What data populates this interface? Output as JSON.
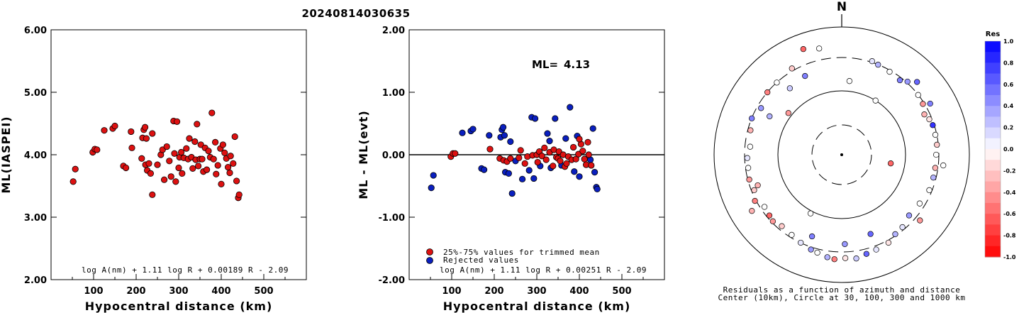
{
  "title": "20240814030635",
  "chart_data": [
    {
      "type": "scatter",
      "xlabel": "Hypocentral distance (km)",
      "ylabel": "ML(IASPEI)",
      "xlim": [
        0,
        600
      ],
      "ylim": [
        2.0,
        6.0
      ],
      "xticks": [
        "100",
        "200",
        "300",
        "400",
        "500"
      ],
      "yticks": [
        "2.00",
        "3.00",
        "4.00",
        "5.00",
        "6.00"
      ],
      "annotation": "log A(nm) + 1.11 log R + 0.00189 R - 2.09",
      "color": "#dd1111",
      "points": [
        [
          52,
          3.57
        ],
        [
          57,
          3.77
        ],
        [
          98,
          4.04
        ],
        [
          103,
          4.09
        ],
        [
          108,
          4.08
        ],
        [
          125,
          4.39
        ],
        [
          145,
          4.42
        ],
        [
          150,
          4.46
        ],
        [
          170,
          3.82
        ],
        [
          176,
          3.79
        ],
        [
          188,
          4.37
        ],
        [
          190,
          4.11
        ],
        [
          213,
          3.94
        ],
        [
          215,
          4.27
        ],
        [
          218,
          4.4
        ],
        [
          221,
          4.44
        ],
        [
          224,
          4.26
        ],
        [
          222,
          3.84
        ],
        [
          226,
          3.75
        ],
        [
          230,
          3.86
        ],
        [
          234,
          3.7
        ],
        [
          238,
          3.36
        ],
        [
          238,
          4.34
        ],
        [
          250,
          3.84
        ],
        [
          258,
          4.0
        ],
        [
          262,
          4.08
        ],
        [
          266,
          3.6
        ],
        [
          272,
          4.13
        ],
        [
          278,
          3.9
        ],
        [
          282,
          3.65
        ],
        [
          288,
          4.54
        ],
        [
          290,
          4.02
        ],
        [
          293,
          3.57
        ],
        [
          296,
          4.53
        ],
        [
          300,
          3.79
        ],
        [
          302,
          3.96
        ],
        [
          306,
          4.04
        ],
        [
          308,
          3.7
        ],
        [
          312,
          3.95
        ],
        [
          318,
          4.1
        ],
        [
          322,
          3.93
        ],
        [
          325,
          4.26
        ],
        [
          330,
          3.96
        ],
        [
          333,
          3.78
        ],
        [
          338,
          4.21
        ],
        [
          340,
          3.92
        ],
        [
          343,
          4.49
        ],
        [
          346,
          3.82
        ],
        [
          350,
          3.93
        ],
        [
          352,
          4.16
        ],
        [
          355,
          3.93
        ],
        [
          358,
          3.73
        ],
        [
          362,
          4.11
        ],
        [
          366,
          3.76
        ],
        [
          370,
          4.06
        ],
        [
          374,
          3.96
        ],
        [
          378,
          4.67
        ],
        [
          382,
          3.93
        ],
        [
          386,
          4.2
        ],
        [
          388,
          3.69
        ],
        [
          392,
          3.83
        ],
        [
          398,
          4.1
        ],
        [
          400,
          3.53
        ],
        [
          404,
          4.16
        ],
        [
          408,
          4.03
        ],
        [
          412,
          3.94
        ],
        [
          416,
          3.8
        ],
        [
          420,
          3.71
        ],
        [
          422,
          3.98
        ],
        [
          428,
          3.86
        ],
        [
          432,
          4.29
        ],
        [
          436,
          3.58
        ],
        [
          440,
          3.31
        ],
        [
          442,
          3.36
        ]
      ]
    },
    {
      "type": "scatter",
      "xlabel": "Hypocentral distance (km)",
      "ylabel": "ML - ML(evt)",
      "xlim": [
        0,
        600
      ],
      "ylim": [
        -2.0,
        2.0
      ],
      "xticks": [
        "100",
        "200",
        "300",
        "400",
        "500"
      ],
      "yticks": [
        "-2.00",
        "-1.00",
        "0.00",
        "1.00",
        "2.00"
      ],
      "ml_label": "ML=",
      "ml_value": "4.13",
      "legend": [
        "25%-75% values for trimmed mean",
        "Rejected values"
      ],
      "annotation": "log A(nm) + 1.11 log R + 0.00251 R - 2.09",
      "accepted_color": "#dd1111",
      "rejected_color": "#0a1fbf",
      "accepted": [
        [
          98,
          -0.03
        ],
        [
          103,
          0.02
        ],
        [
          108,
          0.02
        ],
        [
          190,
          0.09
        ],
        [
          213,
          -0.06
        ],
        [
          222,
          -0.09
        ],
        [
          230,
          -0.11
        ],
        [
          238,
          -0.06
        ],
        [
          258,
          -0.05
        ],
        [
          262,
          0.07
        ],
        [
          272,
          -0.14
        ],
        [
          278,
          -0.03
        ],
        [
          290,
          -0.01
        ],
        [
          300,
          0.0
        ],
        [
          302,
          -0.12
        ],
        [
          306,
          0.05
        ],
        [
          312,
          -0.02
        ],
        [
          318,
          0.11
        ],
        [
          322,
          -0.08
        ],
        [
          330,
          0.04
        ],
        [
          338,
          -0.18
        ],
        [
          340,
          0.08
        ],
        [
          346,
          -0.04
        ],
        [
          350,
          -0.06
        ],
        [
          352,
          0.05
        ],
        [
          355,
          -0.1
        ],
        [
          362,
          0.0
        ],
        [
          366,
          -0.19
        ],
        [
          370,
          -0.14
        ],
        [
          374,
          -0.03
        ],
        [
          382,
          -0.08
        ],
        [
          386,
          0.12
        ],
        [
          392,
          -0.07
        ],
        [
          398,
          0.01
        ],
        [
          404,
          0.17
        ],
        [
          408,
          0.06
        ],
        [
          412,
          -0.07
        ],
        [
          416,
          -0.16
        ],
        [
          422,
          0.0
        ],
        [
          428,
          -0.17
        ],
        [
          420,
          0.2
        ],
        [
          400,
          0.25
        ]
      ],
      "rejected": [
        [
          52,
          -0.53
        ],
        [
          57,
          -0.33
        ],
        [
          125,
          0.35
        ],
        [
          145,
          0.38
        ],
        [
          150,
          0.41
        ],
        [
          170,
          -0.22
        ],
        [
          176,
          -0.24
        ],
        [
          188,
          0.31
        ],
        [
          215,
          0.28
        ],
        [
          218,
          0.4
        ],
        [
          221,
          0.44
        ],
        [
          224,
          0.31
        ],
        [
          226,
          -0.28
        ],
        [
          234,
          -0.3
        ],
        [
          238,
          0.21
        ],
        [
          242,
          -0.62
        ],
        [
          250,
          -0.1
        ],
        [
          266,
          -0.39
        ],
        [
          282,
          -0.25
        ],
        [
          288,
          0.6
        ],
        [
          293,
          -0.38
        ],
        [
          296,
          0.58
        ],
        [
          308,
          -0.18
        ],
        [
          325,
          0.34
        ],
        [
          333,
          -0.21
        ],
        [
          343,
          0.58
        ],
        [
          358,
          -0.17
        ],
        [
          378,
          0.76
        ],
        [
          388,
          -0.27
        ],
        [
          400,
          -0.35
        ],
        [
          426,
          -0.08
        ],
        [
          432,
          0.42
        ],
        [
          436,
          -0.28
        ],
        [
          440,
          -0.52
        ],
        [
          442,
          -0.55
        ],
        [
          368,
          0.26
        ],
        [
          395,
          0.3
        ],
        [
          330,
          0.22
        ]
      ]
    },
    {
      "type": "polar-scatter",
      "north_label": "N",
      "caption_line1": "Residuals as a function of azimuth and distance",
      "caption_line2": "Center (10km), Circle at 30, 100, 300 and 1000 km",
      "colorbar_title": "Res",
      "colorbar_ticks": [
        "1.0",
        "0.8",
        "0.6",
        "0.4",
        "0.2",
        "0.0",
        "-0.2",
        "-0.4",
        "-0.6",
        "-0.8",
        "-1.0"
      ],
      "points": [
        [
          340,
          0.88,
          -0.6
        ],
        [
          330,
          0.78,
          -0.2
        ],
        [
          318,
          0.76,
          0.0
        ],
        [
          310,
          0.76,
          -0.5
        ],
        [
          300,
          0.73,
          0.4
        ],
        [
          292,
          0.76,
          0.5
        ],
        [
          285,
          0.74,
          -0.3
        ],
        [
          275,
          0.72,
          0.0
        ],
        [
          268,
          0.74,
          0.1
        ],
        [
          262,
          0.74,
          0.0
        ],
        [
          255,
          0.75,
          -0.4
        ],
        [
          248,
          0.74,
          -0.2
        ],
        [
          242,
          0.77,
          -0.5
        ],
        [
          236,
          0.73,
          0.0
        ],
        [
          230,
          0.74,
          -0.6
        ],
        [
          226,
          0.75,
          -0.4
        ],
        [
          220,
          0.73,
          -0.2
        ],
        [
          212,
          0.74,
          0.0
        ],
        [
          205,
          0.76,
          0.1
        ],
        [
          198,
          0.78,
          0.4
        ],
        [
          194,
          0.79,
          0.0
        ],
        [
          188,
          0.81,
          0.3
        ],
        [
          184,
          0.82,
          -0.5
        ],
        [
          178,
          0.81,
          -0.1
        ],
        [
          172,
          0.82,
          0.2
        ],
        [
          166,
          0.8,
          0.6
        ],
        [
          160,
          0.79,
          0.1
        ],
        [
          152,
          0.78,
          -0.1
        ],
        [
          146,
          0.75,
          0.3
        ],
        [
          140,
          0.74,
          0.1
        ],
        [
          132,
          0.71,
          0.4
        ],
        [
          122,
          0.72,
          0.0
        ],
        [
          112,
          0.74,
          0.0
        ],
        [
          104,
          0.74,
          0.3
        ],
        [
          98,
          0.74,
          -0.3
        ],
        [
          90,
          0.74,
          0.0
        ],
        [
          84,
          0.75,
          -0.2
        ],
        [
          78,
          0.75,
          0.0
        ],
        [
          72,
          0.75,
          0.8
        ],
        [
          68,
          0.74,
          -0.1
        ],
        [
          64,
          0.72,
          -0.3
        ],
        [
          58,
          0.75,
          -0.4
        ],
        [
          52,
          0.76,
          0.0
        ],
        [
          42,
          0.77,
          0.4
        ],
        [
          38,
          0.74,
          0.5
        ],
        [
          30,
          0.75,
          0.0
        ],
        [
          22,
          0.76,
          0.3
        ],
        [
          348,
          0.85,
          0.0
        ],
        [
          298,
          0.64,
          0.3
        ],
        [
          308,
          0.53,
          -0.4
        ],
        [
          6,
          0.58,
          0.0
        ],
        [
          32,
          0.5,
          0.0
        ],
        [
          208,
          0.52,
          0.0
        ],
        [
          100,
          0.39,
          -0.6
        ],
        [
          335,
          0.68,
          0.5
        ],
        [
          322,
          0.66,
          0.2
        ],
        [
          46,
          0.82,
          0.6
        ],
        [
          60,
          0.8,
          0.5
        ],
        [
          238,
          0.83,
          -0.3
        ],
        [
          250,
          0.7,
          -0.3
        ],
        [
          200,
          0.68,
          0.5
        ],
        [
          178,
          0.7,
          0.4
        ],
        [
          160,
          0.66,
          0.6
        ],
        [
          130,
          0.8,
          -0.4
        ],
        [
          18,
          0.77,
          0.1
        ],
        [
          96,
          0.8,
          0.0
        ]
      ]
    }
  ]
}
